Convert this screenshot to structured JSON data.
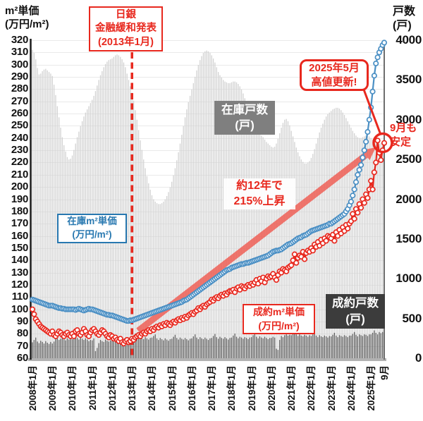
{
  "axes": {
    "left_title": "m²単価\n(万円/m²)",
    "right_title": "戸数\n(戸)",
    "left_ticks": [
      "320",
      "310",
      "300",
      "290",
      "280",
      "270",
      "260",
      "250",
      "240",
      "230",
      "220",
      "210",
      "200",
      "190",
      "180",
      "170",
      "160",
      "150",
      "140",
      "130",
      "120",
      "110",
      "100",
      "90",
      "80",
      "70",
      "60"
    ],
    "right_ticks": [
      "4000",
      "3500",
      "3000",
      "2500",
      "2000",
      "1500",
      "1000",
      "500",
      "0"
    ],
    "x_ticks": [
      "2008年1月",
      "2009年1月",
      "2010年1月",
      "2011年1月",
      "2012年1月",
      "2013年1月",
      "2014年1月",
      "2015年1月",
      "2016年1月",
      "2017年1月",
      "2018年1月",
      "2019年1月",
      "2020年1月",
      "2021年1月",
      "2022年1月",
      "2023年1月",
      "2024年1月",
      "2025年1月",
      "9月"
    ]
  },
  "annotations": {
    "boj": "日銀\n金融緩和発表\n(2013年1月)",
    "record_high": "2025年5月\n高値更新!",
    "september_stable": "9月も\n安定",
    "inventory_count_label": "在庫戸数\n(戸)",
    "inventory_price_label": "在庫m²単価\n(万円/m²)",
    "rise_note": "約12年で\n215%上昇",
    "contract_price_label": "成約m²単価\n(万円/m²)",
    "contract_count_label": "成約戸数\n(戸)"
  },
  "colors": {
    "annotation_red": "#e8281e",
    "line_red": "#e8281e",
    "line_blue": "#4a8fc4",
    "blue_box_border": "#2878b0",
    "inventory_area_gray": "#d2d2d2",
    "contract_bar_gray": "#575757",
    "inventory_label_box": "#7f7f7f",
    "contract_label_box": "#3c3c3c",
    "grid": "#e9e9e9",
    "arrow_salmon": "rgba(239,83,73,0.78)"
  },
  "chart_data": {
    "type": "mixed",
    "title": "",
    "x_start": "2008-01",
    "x_end": "2025-09",
    "x_points": 213,
    "x_tick_labels": [
      "2008年1月",
      "2009年1月",
      "2010年1月",
      "2011年1月",
      "2012年1月",
      "2013年1月",
      "2014年1月",
      "2015年1月",
      "2016年1月",
      "2017年1月",
      "2018年1月",
      "2019年1月",
      "2020年1月",
      "2021年1月",
      "2022年1月",
      "2023年1月",
      "2024年1月",
      "2025年1月",
      "9月"
    ],
    "left_axis": {
      "label": "m²単価(万円/m²)",
      "min": 60,
      "max": 320,
      "tick_step": 10
    },
    "right_axis": {
      "label": "戸数(戸)",
      "min": 0,
      "max": 4000,
      "tick_step": 500
    },
    "event_line": {
      "x": "2013-01",
      "label": "日銀金融緩和発表(2013年1月)"
    },
    "highlight": {
      "label": "2025年5月高値更新!",
      "circled_point": "2025-09 成約m²単価 ≈236",
      "note": "9月も安定",
      "arrow_note": "約12年で215%上昇"
    },
    "series": [
      {
        "name": "在庫戸数(戸)",
        "style": "area-bars",
        "axis": "right",
        "color": "#d2d2d2",
        "values": [
          3880,
          3840,
          3760,
          3650,
          3570,
          3580,
          3610,
          3630,
          3640,
          3620,
          3600,
          3580,
          3550,
          3440,
          3310,
          3170,
          3030,
          2900,
          2780,
          2680,
          2600,
          2530,
          2500,
          2510,
          2550,
          2620,
          2700,
          2780,
          2850,
          2920,
          2980,
          3040,
          3090,
          3130,
          3170,
          3210,
          3250,
          3300,
          3360,
          3430,
          3500,
          3560,
          3610,
          3660,
          3700,
          3730,
          3750,
          3760,
          3770,
          3790,
          3810,
          3820,
          3810,
          3790,
          3760,
          3720,
          3660,
          3580,
          3500,
          3420,
          3340,
          3240,
          3120,
          3000,
          2870,
          2740,
          2620,
          2500,
          2390,
          2290,
          2200,
          2120,
          2050,
          2000,
          1970,
          1950,
          1940,
          1940,
          1950,
          1970,
          2000,
          2040,
          2090,
          2150,
          2220,
          2300,
          2390,
          2490,
          2590,
          2700,
          2810,
          2920,
          3030,
          3130,
          3220,
          3300,
          3380,
          3460,
          3540,
          3620,
          3690,
          3750,
          3800,
          3840,
          3860,
          3870,
          3860,
          3840,
          3810,
          3770,
          3720,
          3660,
          3600,
          3560,
          3530,
          3500,
          3480,
          3470,
          3460,
          3460,
          3470,
          3480,
          3480,
          3470,
          3450,
          3420,
          3380,
          3330,
          3270,
          3200,
          3130,
          3070,
          3020,
          2970,
          2930,
          2890,
          2860,
          2830,
          2800,
          2780,
          2750,
          2720,
          2700,
          2680,
          2660,
          2650,
          2660,
          2700,
          2760,
          2830,
          2900,
          2960,
          3000,
          3010,
          2980,
          2930,
          2860,
          2790,
          2720,
          2650,
          2590,
          2540,
          2500,
          2470,
          2450,
          2450,
          2460,
          2480,
          2520,
          2570,
          2630,
          2700,
          2770,
          2840,
          2900,
          2950,
          3000,
          3040,
          3070,
          3090,
          3110,
          3130,
          3140,
          3150,
          3150,
          3140,
          3120,
          3090,
          3060,
          3020,
          2980,
          2940,
          2900,
          2860,
          2830,
          2800,
          2780,
          2770,
          2770,
          2780,
          2790,
          2800,
          2800,
          2790,
          2770,
          2750,
          2730,
          2710,
          2700,
          2700,
          2710,
          2720,
          2700
        ]
      },
      {
        "name": "成約戸数(戸)",
        "style": "bars",
        "axis": "right",
        "color": "#575757",
        "values": [
          200,
          230,
          260,
          210,
          190,
          220,
          205,
          185,
          215,
          195,
          180,
          205,
          185,
          210,
          250,
          265,
          230,
          245,
          260,
          240,
          225,
          250,
          235,
          245,
          240,
          265,
          290,
          255,
          235,
          260,
          245,
          230,
          250,
          235,
          215,
          230,
          225,
          250,
          90,
          130,
          190,
          230,
          215,
          205,
          235,
          220,
          210,
          225,
          230,
          255,
          285,
          240,
          220,
          245,
          230,
          215,
          240,
          225,
          205,
          230,
          250,
          275,
          310,
          265,
          245,
          270,
          255,
          240,
          265,
          250,
          235,
          255,
          260,
          280,
          300,
          250,
          230,
          255,
          240,
          225,
          250,
          235,
          220,
          240,
          245,
          270,
          295,
          255,
          235,
          260,
          245,
          235,
          255,
          240,
          225,
          245,
          250,
          275,
          300,
          260,
          240,
          265,
          250,
          240,
          260,
          245,
          230,
          250,
          255,
          280,
          305,
          265,
          245,
          270,
          255,
          245,
          265,
          250,
          235,
          255,
          260,
          285,
          310,
          270,
          250,
          270,
          260,
          245,
          265,
          255,
          240,
          260,
          265,
          290,
          315,
          270,
          250,
          275,
          260,
          250,
          270,
          255,
          240,
          255,
          255,
          270,
          260,
          120,
          105,
          230,
          280,
          265,
          290,
          300,
          285,
          295,
          290,
          310,
          340,
          300,
          280,
          300,
          285,
          275,
          295,
          285,
          270,
          290,
          280,
          300,
          325,
          285,
          265,
          290,
          275,
          265,
          285,
          275,
          260,
          280,
          275,
          295,
          320,
          285,
          265,
          290,
          280,
          270,
          290,
          280,
          265,
          285,
          285,
          305,
          330,
          295,
          275,
          300,
          290,
          280,
          300,
          295,
          280,
          300,
          300,
          320,
          350,
          320,
          300,
          330,
          315,
          330,
          400
        ]
      },
      {
        "name": "在庫m²単価(万円/m²)",
        "style": "line",
        "axis": "left",
        "color": "#4a8fc4",
        "values": [
          108,
          107.5,
          107,
          106.5,
          106,
          105.5,
          105,
          104.5,
          104,
          103.5,
          103,
          103,
          103,
          102.5,
          102,
          101.5,
          101,
          101,
          100.5,
          100.5,
          100,
          100,
          100,
          100,
          100,
          100,
          99.5,
          100,
          100.5,
          100,
          99.5,
          99,
          99.5,
          100,
          100.5,
          100,
          100,
          99.5,
          99,
          98.5,
          98,
          97.5,
          97,
          96.5,
          96,
          95.5,
          95.5,
          95,
          95,
          94.5,
          94,
          93.5,
          93,
          92.5,
          92,
          91.5,
          91,
          90.5,
          90.5,
          91,
          91,
          91.5,
          92,
          92.5,
          93,
          93.5,
          94,
          94.5,
          95,
          95.5,
          96,
          96.5,
          97,
          97.5,
          98,
          98.5,
          99,
          99.5,
          100,
          100.5,
          101,
          101.5,
          102,
          102.5,
          103,
          103.5,
          104,
          104.5,
          105,
          105.5,
          106,
          107,
          107.5,
          108,
          109,
          110,
          111,
          112,
          113,
          114,
          115,
          116,
          117,
          118,
          119,
          120,
          121,
          122,
          123,
          124,
          125,
          126,
          127,
          128,
          129,
          130,
          131,
          132,
          132.5,
          133,
          134,
          134.5,
          135,
          135.5,
          136,
          136.5,
          137,
          137,
          137.5,
          138,
          138,
          138.5,
          139,
          139.5,
          140,
          140.5,
          141,
          141.5,
          142,
          142.5,
          143,
          143.5,
          144,
          145,
          146,
          147,
          147.5,
          148,
          148,
          148.5,
          149,
          150,
          151,
          152,
          153,
          153.5,
          154,
          155,
          156,
          157,
          158,
          158.5,
          159,
          160,
          160.5,
          161,
          162,
          163,
          164,
          164.5,
          165,
          165.5,
          166,
          166.5,
          167,
          167.5,
          168,
          168.5,
          169,
          170,
          170,
          171,
          172,
          173,
          174,
          175,
          176,
          177,
          178,
          180,
          182,
          185,
          188,
          193,
          198,
          204,
          210,
          214,
          218,
          224,
          230,
          237,
          245,
          255,
          265,
          278,
          291,
          301,
          306,
          310,
          313,
          316,
          318
        ]
      },
      {
        "name": "成約m²単価(万円/m²)",
        "style": "line",
        "axis": "left",
        "color": "#e8281e",
        "values": [
          100,
          96,
          92,
          90,
          88,
          86,
          85,
          84,
          83,
          82,
          81,
          80,
          82,
          79,
          78,
          80,
          82,
          81,
          79,
          78,
          80,
          81,
          79,
          78,
          80,
          78,
          82,
          83,
          80,
          79,
          81,
          84,
          82,
          79,
          78,
          81,
          83,
          84,
          82,
          80,
          79,
          81,
          83,
          82,
          80,
          78,
          77,
          79,
          78,
          76,
          77,
          75,
          74,
          76,
          73,
          72,
          74,
          75,
          73,
          74,
          76,
          75,
          77,
          78,
          79,
          78,
          80,
          81,
          80,
          82,
          83,
          82,
          84,
          83,
          85,
          86,
          85,
          87,
          86,
          88,
          87,
          89,
          88,
          87,
          89,
          90,
          89,
          91,
          92,
          91,
          93,
          92,
          94,
          93,
          95,
          96,
          97,
          96,
          98,
          99,
          101,
          100,
          102,
          103,
          102,
          104,
          105,
          106,
          108,
          107,
          109,
          110,
          109,
          111,
          112,
          111,
          113,
          112,
          114,
          115,
          115,
          116,
          114,
          117,
          118,
          116,
          119,
          118,
          117,
          119,
          120,
          119,
          121,
          120,
          122,
          124,
          121,
          125,
          123,
          126,
          122,
          125,
          127,
          126,
          127,
          129,
          126,
          124,
          128,
          131,
          130,
          133,
          132,
          131,
          134,
          135,
          136,
          140,
          145,
          138,
          142,
          144,
          143,
          147,
          141,
          146,
          148,
          147,
          150,
          148,
          153,
          151,
          155,
          152,
          157,
          154,
          158,
          156,
          160,
          159,
          158,
          161,
          156,
          163,
          160,
          165,
          162,
          167,
          164,
          169,
          166,
          170,
          172,
          178,
          174,
          182,
          179,
          186,
          183,
          190,
          187,
          194,
          191,
          198,
          205,
          198,
          212,
          220,
          238,
          228,
          222,
          230,
          236
        ]
      }
    ]
  }
}
